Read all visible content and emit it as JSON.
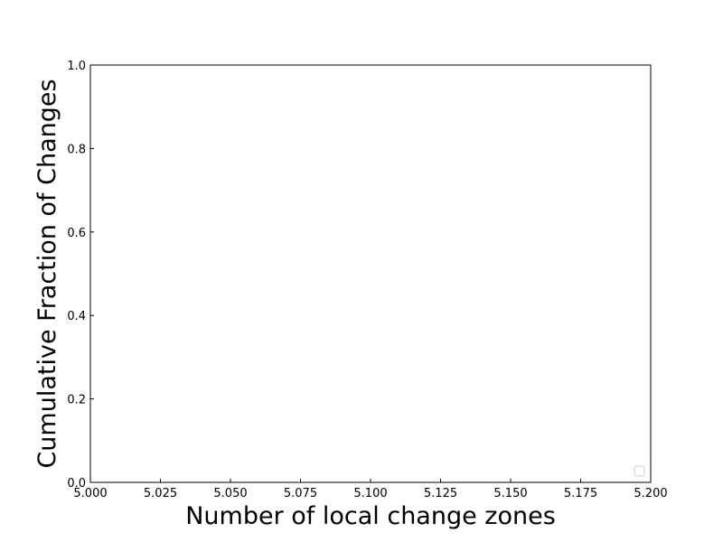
{
  "chart_data": {
    "type": "line",
    "title": "",
    "xlabel": "Number of local change zones",
    "ylabel": "Cumulative Fraction of Changes",
    "xlim": [
      5.0,
      5.2
    ],
    "ylim": [
      0.0,
      1.0
    ],
    "x_ticks": [
      5.0,
      5.025,
      5.05,
      5.075,
      5.1,
      5.125,
      5.15,
      5.175,
      5.2
    ],
    "x_tick_labels": [
      "5.000",
      "5.025",
      "5.050",
      "5.075",
      "5.100",
      "5.125",
      "5.150",
      "5.175",
      "5.200"
    ],
    "y_ticks": [
      0.0,
      0.2,
      0.4,
      0.6,
      0.8,
      1.0
    ],
    "y_tick_labels": [
      "0.0",
      "0.2",
      "0.4",
      "0.6",
      "0.8",
      "1.0"
    ],
    "series": [],
    "grid": false,
    "legend": {
      "placement": "lower-right",
      "entries": []
    },
    "ticks_direction": "in"
  }
}
